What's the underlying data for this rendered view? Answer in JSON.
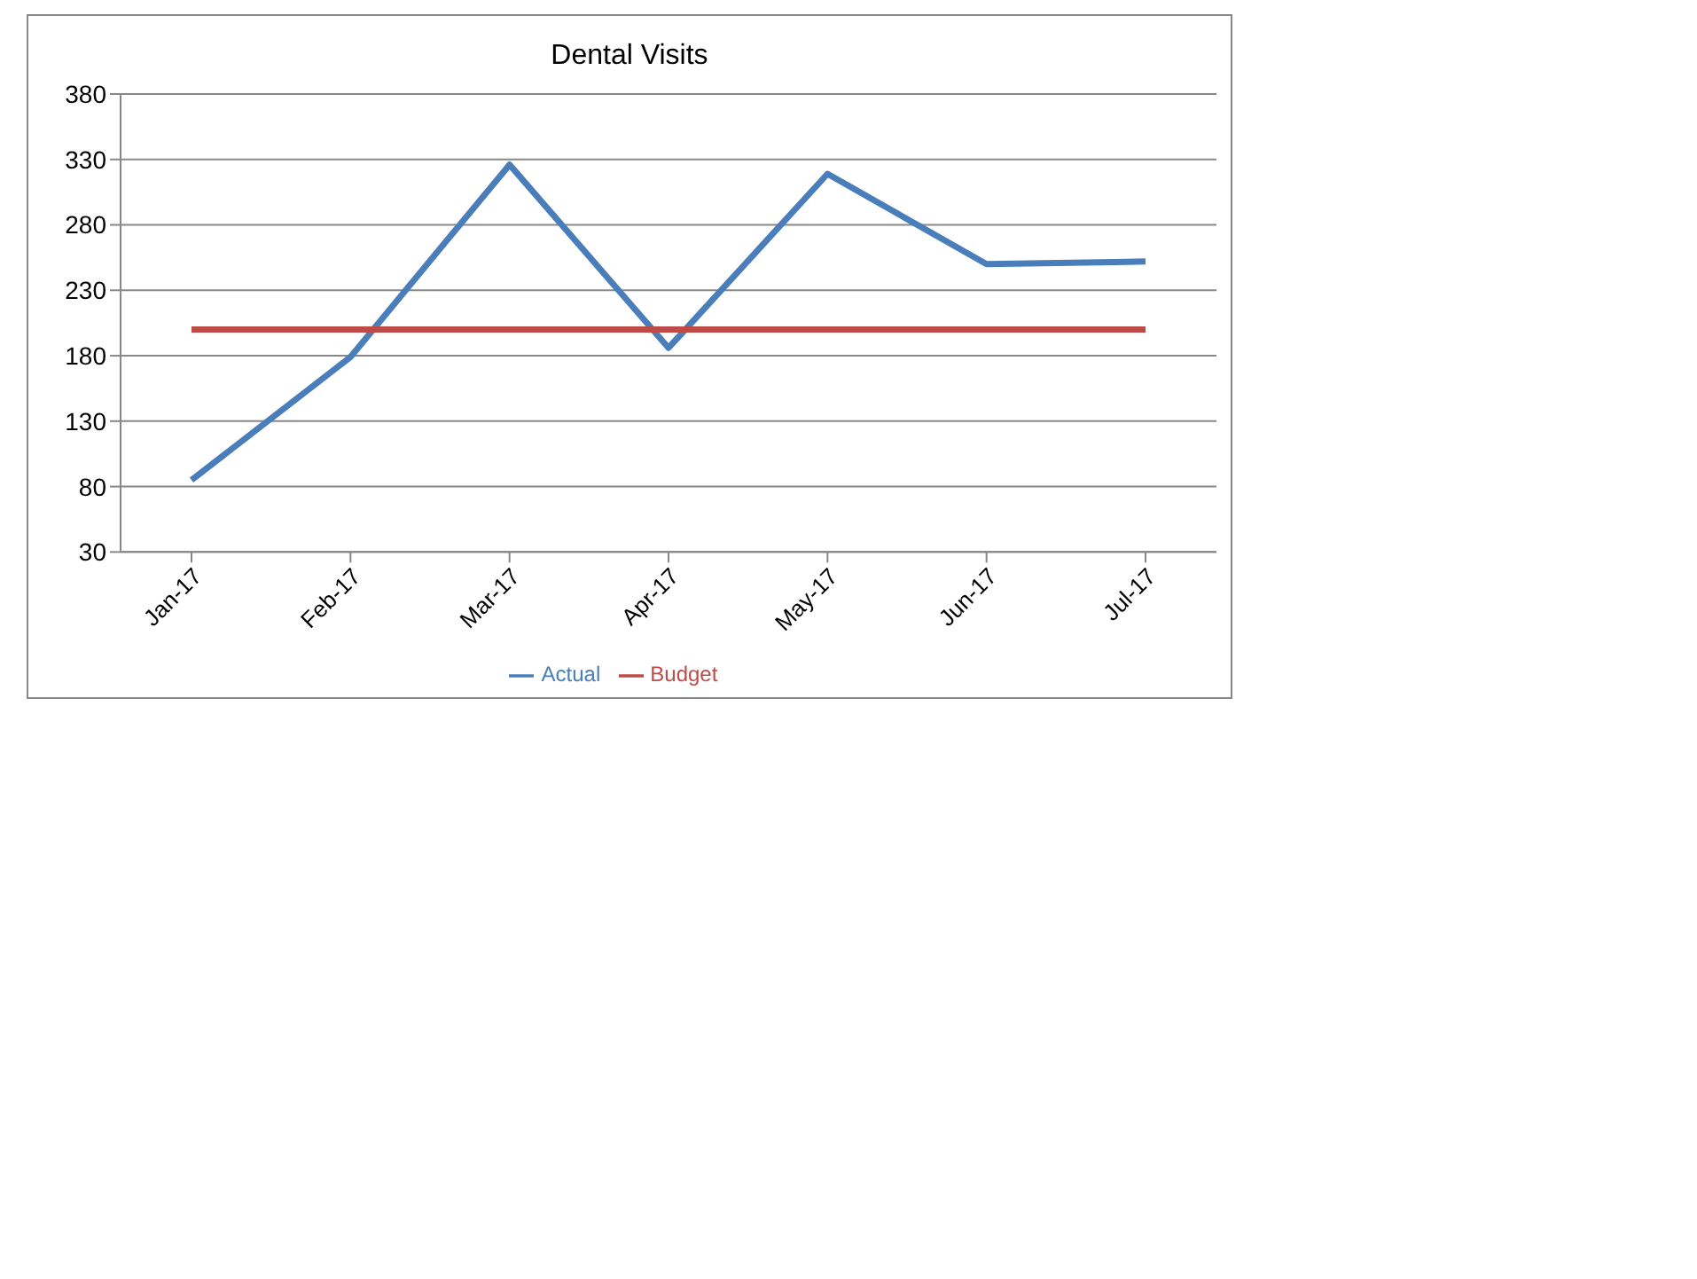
{
  "chart_data": {
    "type": "line",
    "title": "Dental Visits",
    "categories": [
      "Jan-17",
      "Feb-17",
      "Mar-17",
      "Apr-17",
      "May-17",
      "Jun-17",
      "Jul-17"
    ],
    "series": [
      {
        "name": "Actual",
        "color": "#4a7ebb",
        "values": [
          85,
          179,
          326,
          186,
          319,
          250,
          252
        ]
      },
      {
        "name": "Budget",
        "color": "#be4b48",
        "values": [
          200,
          200,
          200,
          200,
          200,
          200,
          200
        ]
      }
    ],
    "ylim": [
      30,
      380
    ],
    "yticks": [
      30,
      80,
      130,
      180,
      230,
      280,
      330,
      380
    ],
    "grid": "y",
    "legend": "bottom",
    "marker": "none",
    "line_style": "solid"
  }
}
